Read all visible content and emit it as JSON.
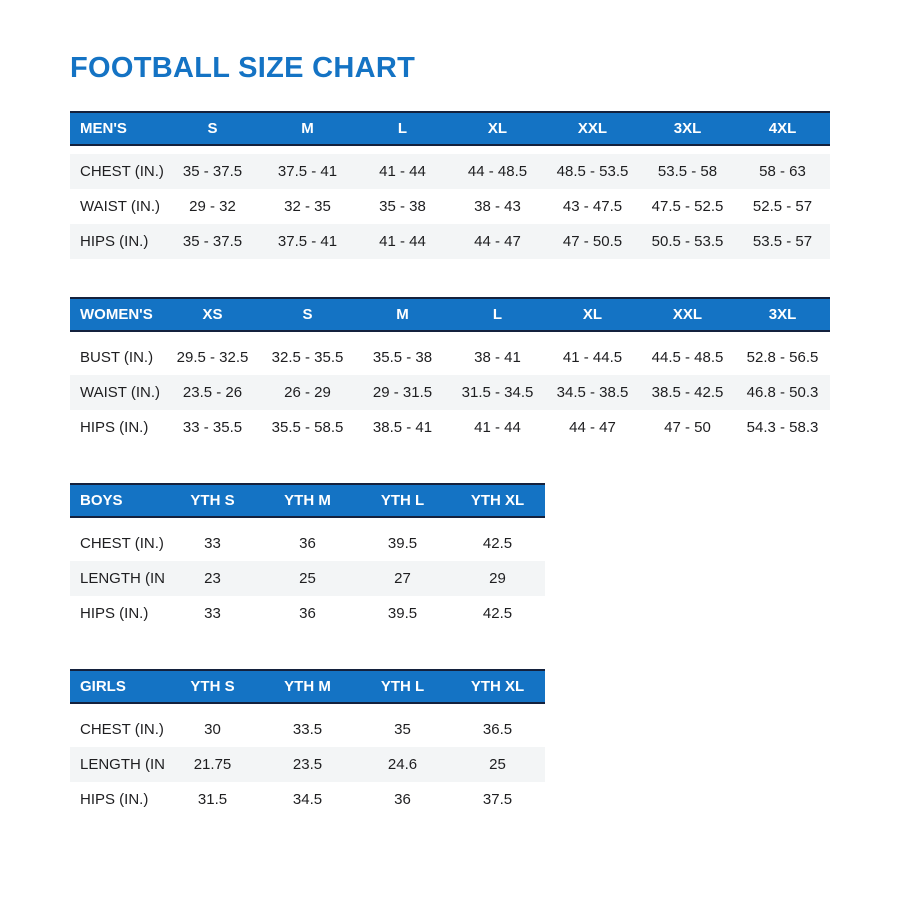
{
  "title": "FOOTBALL SIZE CHART",
  "colors": {
    "accent_blue": "#1473c4",
    "header_text": "#ffffff",
    "dark_rule": "#14213d",
    "stripe_gray": "#f3f5f6",
    "body_text": "#1e1e20"
  },
  "tables": [
    {
      "name": "MEN'S",
      "columns": [
        "S",
        "M",
        "L",
        "XL",
        "XXL",
        "3XL",
        "4XL"
      ],
      "rows": [
        {
          "label": "CHEST (IN.)",
          "values": [
            "35 - 37.5",
            "37.5 - 41",
            "41 - 44",
            "44 - 48.5",
            "48.5 - 53.5",
            "53.5 - 58",
            "58 - 63"
          ]
        },
        {
          "label": "WAIST (IN.)",
          "values": [
            "29 - 32",
            "32 - 35",
            "35 - 38",
            "38 - 43",
            "43 - 47.5",
            "47.5 - 52.5",
            "52.5 - 57"
          ]
        },
        {
          "label": "HIPS (IN.)",
          "values": [
            "35 - 37.5",
            "37.5 - 41",
            "41 - 44",
            "44 - 47",
            "47 - 50.5",
            "50.5 - 53.5",
            "53.5 - 57"
          ]
        }
      ]
    },
    {
      "name": "WOMEN'S",
      "columns": [
        "XS",
        "S",
        "M",
        "L",
        "XL",
        "XXL",
        "3XL"
      ],
      "rows": [
        {
          "label": "BUST (IN.)",
          "values": [
            "29.5 - 32.5",
            "32.5 - 35.5",
            "35.5 - 38",
            "38 - 41",
            "41 - 44.5",
            "44.5 - 48.5",
            "52.8 - 56.5"
          ]
        },
        {
          "label": "WAIST (IN.)",
          "values": [
            "23.5 - 26",
            "26 - 29",
            "29 - 31.5",
            "31.5 - 34.5",
            "34.5 - 38.5",
            "38.5 - 42.5",
            "46.8 - 50.3"
          ]
        },
        {
          "label": "HIPS (IN.)",
          "values": [
            "33 - 35.5",
            "35.5 - 58.5",
            "38.5 - 41",
            "41 - 44",
            "44 - 47",
            "47 - 50",
            "54.3 - 58.3"
          ]
        }
      ]
    },
    {
      "name": "BOYS",
      "columns": [
        "YTH S",
        "YTH M",
        "YTH L",
        "YTH XL"
      ],
      "rows": [
        {
          "label": "CHEST (IN.)",
          "values": [
            "33",
            "36",
            "39.5",
            "42.5"
          ]
        },
        {
          "label": "LENGTH (IN.)",
          "values": [
            "23",
            "25",
            "27",
            "29"
          ]
        },
        {
          "label": "HIPS (IN.)",
          "values": [
            "33",
            "36",
            "39.5",
            "42.5"
          ]
        }
      ]
    },
    {
      "name": "GIRLS",
      "columns": [
        "YTH S",
        "YTH M",
        "YTH L",
        "YTH XL"
      ],
      "rows": [
        {
          "label": "CHEST (IN.)",
          "values": [
            "30",
            "33.5",
            "35",
            "36.5"
          ]
        },
        {
          "label": "LENGTH (IN.)",
          "values": [
            "21.75",
            "23.5",
            "24.6",
            "25"
          ]
        },
        {
          "label": "HIPS (IN.)",
          "values": [
            "31.5",
            "34.5",
            "36",
            "37.5"
          ]
        }
      ]
    }
  ]
}
